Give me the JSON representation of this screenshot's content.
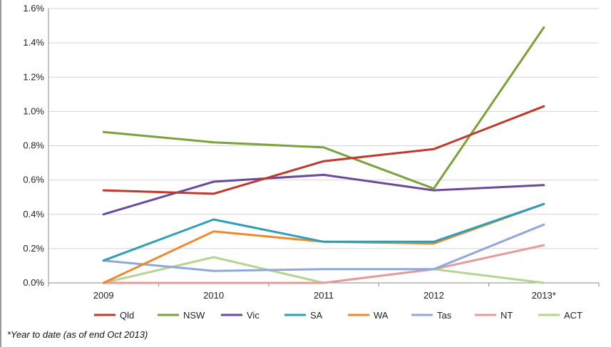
{
  "chart_data": {
    "type": "line",
    "title": "",
    "xlabel": "",
    "ylabel": "",
    "categories": [
      "2009",
      "2010",
      "2011",
      "2012",
      "2013*"
    ],
    "ylim": [
      0,
      0.016
    ],
    "yticks": [
      0,
      0.002,
      0.004,
      0.006,
      0.008,
      0.01,
      0.012,
      0.014,
      0.016
    ],
    "ytick_labels": [
      "0.0%",
      "0.2%",
      "0.4%",
      "0.6%",
      "0.8%",
      "1.0%",
      "1.2%",
      "1.4%",
      "1.6%"
    ],
    "grid": "horizontal",
    "legend_position": "bottom",
    "series": [
      {
        "name": "Qld",
        "color": "#c0392b",
        "values": [
          0.0054,
          0.0052,
          0.0071,
          0.0078,
          0.0103
        ]
      },
      {
        "name": "NSW",
        "color": "#7aa13a",
        "values": [
          0.0088,
          0.0082,
          0.0079,
          0.0055,
          0.0149
        ]
      },
      {
        "name": "Vic",
        "color": "#6a4a9c",
        "values": [
          0.004,
          0.0059,
          0.0063,
          0.0054,
          0.0057
        ]
      },
      {
        "name": "SA",
        "color": "#2e9fb8",
        "values": [
          0.0013,
          0.0037,
          0.0024,
          0.0024,
          0.0046
        ]
      },
      {
        "name": "WA",
        "color": "#f0892b",
        "values": [
          0.0,
          0.003,
          0.0024,
          0.0023,
          0.0046
        ]
      },
      {
        "name": "Tas",
        "color": "#8fa8d8",
        "values": [
          0.0013,
          0.0007,
          0.0008,
          0.0008,
          0.0034
        ]
      },
      {
        "name": "NT",
        "color": "#e8999b",
        "values": [
          0.0,
          0.0,
          0.0,
          0.0008,
          0.0022
        ]
      },
      {
        "name": "ACT",
        "color": "#b6d48e",
        "values": [
          0.0,
          0.0015,
          0.0,
          0.0008,
          0.0
        ]
      }
    ]
  },
  "footnote": "*Year to date (as of end Oct 2013)"
}
